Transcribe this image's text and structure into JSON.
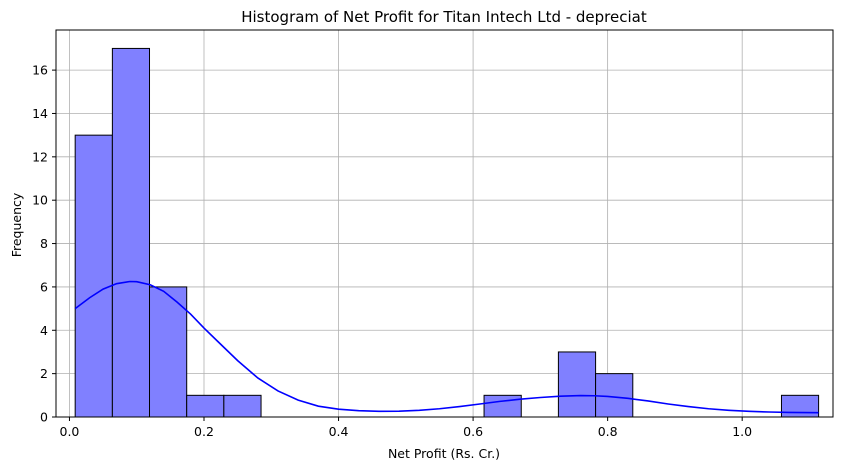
{
  "chart_data": {
    "type": "bar",
    "title": "Histogram of Net Profit for Titan Intech Ltd - depreciat",
    "xlabel": "Net Profit (Rs. Cr.)",
    "ylabel": "Frequency",
    "xlim": [
      -0.02,
      1.135
    ],
    "ylim": [
      0,
      17.85
    ],
    "xticks": [
      0.0,
      0.2,
      0.4,
      0.6,
      0.8,
      1.0
    ],
    "xtick_labels": [
      "0.0",
      "0.2",
      "0.4",
      "0.6",
      "0.8",
      "1.0"
    ],
    "yticks": [
      0,
      2,
      4,
      6,
      8,
      10,
      12,
      14,
      16
    ],
    "ytick_labels": [
      "0",
      "2",
      "4",
      "6",
      "8",
      "10",
      "12",
      "14",
      "16"
    ],
    "grid": true,
    "bar_color": "#8080ff",
    "bar_edge_color": "#000000",
    "kde_color": "#0000ff",
    "bins": [
      {
        "x0": 0.0085,
        "x1": 0.0638,
        "count": 13
      },
      {
        "x0": 0.0638,
        "x1": 0.119,
        "count": 17
      },
      {
        "x0": 0.119,
        "x1": 0.1743,
        "count": 6
      },
      {
        "x0": 0.1743,
        "x1": 0.2295,
        "count": 1
      },
      {
        "x0": 0.2295,
        "x1": 0.2848,
        "count": 1
      },
      {
        "x0": 0.2848,
        "x1": 0.34,
        "count": 0
      },
      {
        "x0": 0.34,
        "x1": 0.3953,
        "count": 0
      },
      {
        "x0": 0.3953,
        "x1": 0.4506,
        "count": 0
      },
      {
        "x0": 0.4506,
        "x1": 0.5058,
        "count": 0
      },
      {
        "x0": 0.5058,
        "x1": 0.5611,
        "count": 0
      },
      {
        "x0": 0.5611,
        "x1": 0.6163,
        "count": 0
      },
      {
        "x0": 0.6163,
        "x1": 0.6716,
        "count": 1
      },
      {
        "x0": 0.6716,
        "x1": 0.7268,
        "count": 0
      },
      {
        "x0": 0.7268,
        "x1": 0.7821,
        "count": 3
      },
      {
        "x0": 0.7821,
        "x1": 0.8374,
        "count": 2
      },
      {
        "x0": 0.8374,
        "x1": 0.8926,
        "count": 0
      },
      {
        "x0": 0.8926,
        "x1": 0.9479,
        "count": 0
      },
      {
        "x0": 0.9479,
        "x1": 1.0031,
        "count": 0
      },
      {
        "x0": 1.0031,
        "x1": 1.0584,
        "count": 0
      },
      {
        "x0": 1.0584,
        "x1": 1.1136,
        "count": 1
      }
    ],
    "kde_curve": {
      "x": [
        0.0085,
        0.03,
        0.05,
        0.07,
        0.09,
        0.1,
        0.12,
        0.14,
        0.16,
        0.18,
        0.2,
        0.22,
        0.25,
        0.28,
        0.31,
        0.34,
        0.37,
        0.4,
        0.43,
        0.46,
        0.49,
        0.52,
        0.55,
        0.58,
        0.61,
        0.64,
        0.67,
        0.7,
        0.73,
        0.76,
        0.78,
        0.8,
        0.83,
        0.86,
        0.89,
        0.92,
        0.95,
        0.98,
        1.01,
        1.04,
        1.07,
        1.1136
      ],
      "y": [
        5.0,
        5.5,
        5.9,
        6.15,
        6.25,
        6.24,
        6.1,
        5.8,
        5.3,
        4.75,
        4.1,
        3.5,
        2.6,
        1.8,
        1.2,
        0.78,
        0.5,
        0.36,
        0.29,
        0.26,
        0.27,
        0.31,
        0.38,
        0.48,
        0.6,
        0.72,
        0.82,
        0.9,
        0.96,
        0.99,
        0.98,
        0.95,
        0.86,
        0.74,
        0.6,
        0.48,
        0.38,
        0.31,
        0.26,
        0.23,
        0.21,
        0.2
      ]
    }
  }
}
